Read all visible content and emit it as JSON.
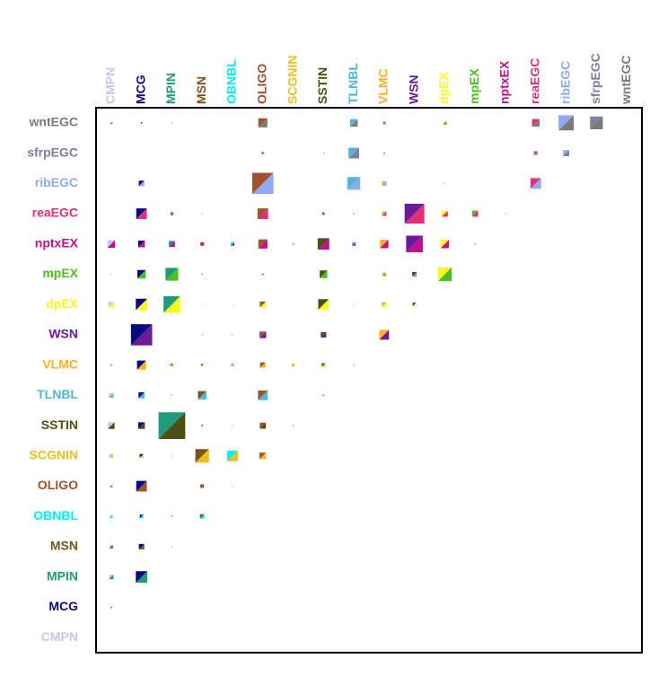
{
  "chart_data": {
    "type": "matrix",
    "columns": [
      "CMPN",
      "MCG",
      "MPIN",
      "MSN",
      "OBNBL",
      "OLIGO",
      "SCGNIN",
      "SSTIN",
      "TLNBL",
      "VLMC",
      "WSN",
      "dpEX",
      "mpEX",
      "nptxEX",
      "reaEGC",
      "ribEGC",
      "sfrpEGC",
      "wntEGC"
    ],
    "colors": [
      "#ccc4f2",
      "#0a0a80",
      "#1f9a7a",
      "#7a5418",
      "#00f0f0",
      "#a0522d",
      "#e8c020",
      "#4f4f12",
      "#52b6d8",
      "#ffb020",
      "#6a1a9a",
      "#f8f820",
      "#4cc020",
      "#c01090",
      "#e0307a",
      "#90aaf0",
      "#7a80a0",
      "#7a7a7a"
    ],
    "rows": [
      "wntEGC",
      "sfrpEGC",
      "ribEGC",
      "reaEGC",
      "nptxEX",
      "mpEX",
      "dpEX",
      "WSN",
      "VLMC",
      "TLNBL",
      "SSTIN",
      "SCGNIN",
      "OLIGO",
      "OBNBL",
      "MSN",
      "MPIN",
      "MCG",
      "CMPN"
    ],
    "values": [
      [
        0.08,
        0.05,
        0.03,
        null,
        null,
        0.3,
        null,
        null,
        0.25,
        0.1,
        null,
        0.12,
        null,
        null,
        0.25,
        0.5,
        0.42,
        null
      ],
      [
        null,
        null,
        null,
        null,
        null,
        0.08,
        null,
        0.03,
        0.35,
        0.06,
        null,
        null,
        null,
        null,
        0.12,
        0.2,
        null,
        null
      ],
      [
        0.03,
        0.18,
        null,
        null,
        null,
        0.7,
        null,
        null,
        0.42,
        0.15,
        null,
        0.05,
        null,
        null,
        0.35,
        null,
        null,
        null
      ],
      [
        null,
        0.35,
        0.1,
        0.03,
        null,
        0.35,
        null,
        0.08,
        0.04,
        0.15,
        0.65,
        0.2,
        0.2,
        0.03,
        null,
        null,
        null,
        null
      ],
      [
        0.25,
        0.22,
        0.2,
        0.12,
        0.12,
        0.3,
        0.05,
        0.38,
        0.12,
        0.28,
        0.55,
        0.28,
        0.04,
        null,
        null,
        null,
        null,
        null
      ],
      [
        0.03,
        0.28,
        0.42,
        0.04,
        null,
        0.06,
        null,
        0.25,
        null,
        0.12,
        0.15,
        0.45,
        null,
        null,
        null,
        null,
        null,
        null
      ],
      [
        0.18,
        0.38,
        0.55,
        0.03,
        0.04,
        0.2,
        null,
        0.35,
        0.04,
        0.15,
        0.12,
        null,
        null,
        null,
        null,
        null,
        null,
        null
      ],
      [
        null,
        0.7,
        null,
        0.03,
        0.03,
        0.22,
        null,
        0.18,
        null,
        0.32,
        null,
        null,
        null,
        null,
        null,
        null,
        null,
        null
      ],
      [
        0.08,
        0.3,
        0.1,
        0.08,
        0.1,
        0.18,
        0.1,
        0.12,
        0.05,
        null,
        null,
        null,
        null,
        null,
        null,
        null,
        null,
        null
      ],
      [
        0.15,
        0.2,
        0.04,
        0.28,
        null,
        0.32,
        null,
        0.05,
        null,
        null,
        null,
        null,
        null,
        null,
        null,
        null,
        null,
        null
      ],
      [
        0.22,
        0.22,
        0.88,
        0.05,
        0.03,
        0.2,
        0.04,
        null,
        null,
        null,
        null,
        null,
        null,
        null,
        null,
        null,
        null,
        null
      ],
      [
        0.12,
        0.12,
        0.03,
        0.45,
        0.35,
        0.22,
        null,
        null,
        null,
        null,
        null,
        null,
        null,
        null,
        null,
        null,
        null,
        null
      ],
      [
        0.08,
        0.35,
        null,
        0.12,
        0.03,
        null,
        null,
        null,
        null,
        null,
        null,
        null,
        null,
        null,
        null,
        null,
        null,
        null
      ],
      [
        0.1,
        0.12,
        0.05,
        0.15,
        null,
        null,
        null,
        null,
        null,
        null,
        null,
        null,
        null,
        null,
        null,
        null,
        null,
        null
      ],
      [
        0.12,
        0.18,
        0.03,
        null,
        null,
        null,
        null,
        null,
        null,
        null,
        null,
        null,
        null,
        null,
        null,
        null,
        null,
        null
      ],
      [
        0.15,
        0.38,
        null,
        null,
        null,
        null,
        null,
        null,
        null,
        null,
        null,
        null,
        null,
        null,
        null,
        null,
        null,
        null
      ],
      [
        0.05,
        null,
        null,
        null,
        null,
        null,
        null,
        null,
        null,
        null,
        null,
        null,
        null,
        null,
        null,
        null,
        null,
        null
      ],
      [
        null,
        null,
        null,
        null,
        null,
        null,
        null,
        null,
        null,
        null,
        null,
        null,
        null,
        null,
        null,
        null,
        null,
        null
      ]
    ]
  }
}
